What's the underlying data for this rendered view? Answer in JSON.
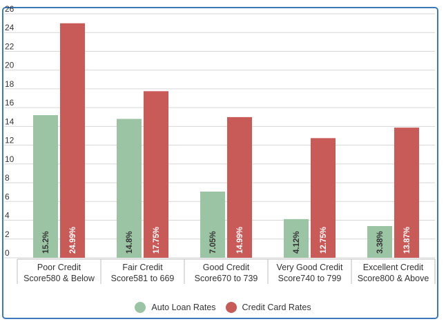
{
  "chart_data": {
    "type": "bar",
    "categories": [
      [
        "Poor Credit",
        "Score580 & Below"
      ],
      [
        "Fair Credit",
        "Score581 to 669"
      ],
      [
        "Good Credit",
        "Score670 to 739"
      ],
      [
        "Very Good Credit",
        "Score740 to 799"
      ],
      [
        "Excellent Credit",
        "Score800 & Above"
      ]
    ],
    "series": [
      {
        "name": "Auto Loan Rates",
        "color": "#9bc4a4",
        "label_color": "#333333",
        "values": [
          15.2,
          14.8,
          7.05,
          4.12,
          3.38
        ],
        "labels": [
          "15.2%",
          "14.8%",
          "7.05%",
          "4.12%",
          "3.38%"
        ]
      },
      {
        "name": "Credit Card Rates",
        "color": "#c85a58",
        "label_color": "#ffffff",
        "values": [
          24.99,
          17.75,
          14.99,
          12.75,
          13.87
        ],
        "labels": [
          "24.99%",
          "17.75%",
          "14.99%",
          "12.75%",
          "13.87%"
        ]
      }
    ],
    "ylim": [
      0,
      26
    ],
    "yticks": [
      0,
      2,
      4,
      6,
      8,
      10,
      12,
      14,
      16,
      18,
      20,
      22,
      24,
      26
    ],
    "grid": true,
    "legend": "bottom"
  }
}
